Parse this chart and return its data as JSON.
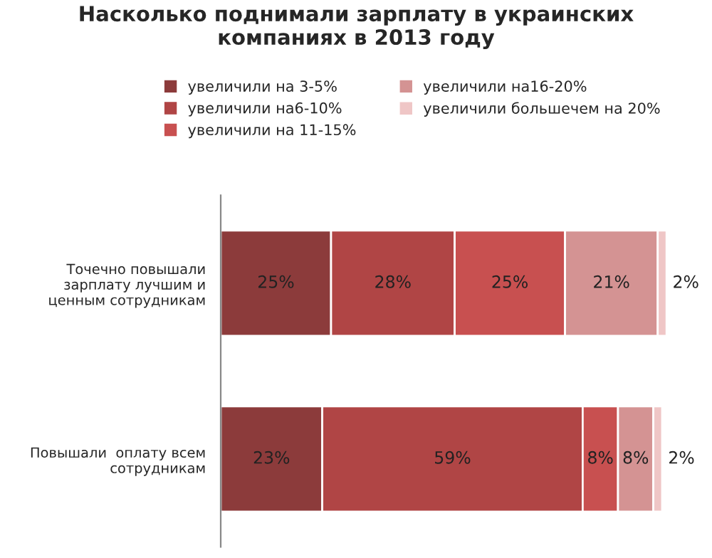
{
  "chart_data": {
    "type": "bar",
    "orientation": "horizontal",
    "stacked": true,
    "legend": "top",
    "grid": false,
    "title": "Насколько поднимали зарплату в украинских\nкомпаниях в 2013 году",
    "categories": [
      "Точечно повышали\nзарплату лучшим и\nценным сотрудникам",
      "Повышали  оплату всем\nсотрудникам"
    ],
    "series": [
      {
        "name": "увеличили на 3-5%",
        "color": "#8c3b3b",
        "values": [
          25,
          23
        ],
        "value_labels": [
          "25%",
          "23%"
        ]
      },
      {
        "name": "увеличили на6-10%",
        "color": "#b04545",
        "values": [
          28,
          59
        ],
        "value_labels": [
          "28%",
          "59%"
        ]
      },
      {
        "name": "увеличили на 11-15%",
        "color": "#c85050",
        "values": [
          25,
          8
        ],
        "value_labels": [
          "25%",
          "8%"
        ]
      },
      {
        "name": "увеличили на16-20%",
        "color": "#d49393",
        "values": [
          21,
          8
        ],
        "value_labels": [
          "21%",
          "8%"
        ]
      },
      {
        "name": "увеличили большечем на 20%",
        "color": "#efc6c6",
        "values": [
          2,
          2
        ],
        "value_labels": [
          "2%",
          "2%"
        ]
      }
    ]
  }
}
